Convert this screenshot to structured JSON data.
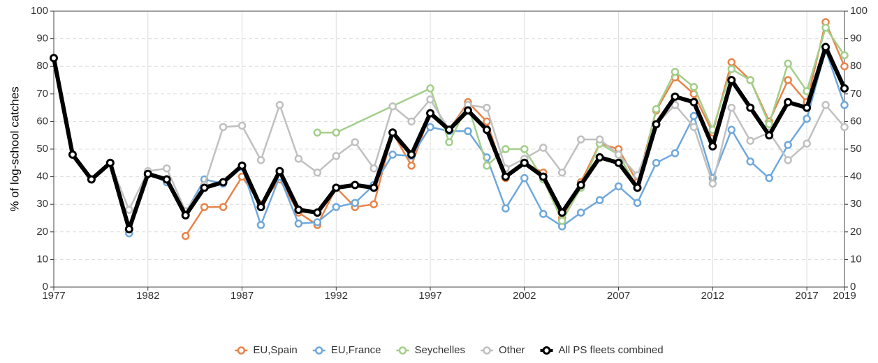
{
  "chart_data": {
    "type": "line",
    "ylabel": "% of log-school catches",
    "xlim": [
      1977,
      2019
    ],
    "xticks": [
      1977,
      1982,
      1987,
      1992,
      1997,
      2002,
      2007,
      2012,
      2017,
      2019
    ],
    "ylim": [
      0,
      100
    ],
    "yticks": [
      0,
      10,
      20,
      30,
      40,
      50,
      60,
      70,
      80,
      90,
      100
    ],
    "y2lim": [
      0,
      100
    ],
    "y2ticks": [
      0,
      10,
      20,
      30,
      40,
      50,
      60,
      70,
      80,
      90,
      100
    ],
    "grid": true,
    "legend": "bottom",
    "series": [
      {
        "name": "EU,Spain",
        "color": "#e8844a",
        "x": [
          1984,
          1985,
          1986,
          1987,
          1988,
          1989,
          1990,
          1991,
          1992,
          1993,
          1994,
          1995,
          1996,
          1997,
          1998,
          1999,
          2000,
          2001,
          2002,
          2003,
          2004,
          2005,
          2006,
          2007,
          2008,
          2009,
          2010,
          2011,
          2012,
          2013,
          2014,
          2015,
          2016,
          2017,
          2018,
          2019
        ],
        "values": [
          18.5,
          29,
          29,
          40,
          30,
          39,
          27,
          22.5,
          36,
          29,
          30,
          56,
          44,
          63,
          57,
          67,
          60,
          39.5,
          45,
          41.5,
          25,
          38,
          52,
          50,
          38,
          64,
          76,
          70,
          56,
          81.5,
          75,
          60,
          75,
          67,
          96,
          80
        ]
      },
      {
        "name": "EU,France",
        "color": "#6fa8dc",
        "x": [
          1981,
          1982,
          1983,
          1984,
          1985,
          1986,
          1987,
          1988,
          1989,
          1990,
          1991,
          1992,
          1993,
          1994,
          1995,
          1996,
          1997,
          1998,
          1999,
          2000,
          2001,
          2002,
          2003,
          2004,
          2005,
          2006,
          2007,
          2008,
          2009,
          2010,
          2011,
          2012,
          2013,
          2014,
          2015,
          2016,
          2017,
          2018,
          2019
        ],
        "values": [
          19.5,
          41,
          38,
          27,
          39,
          37.5,
          43.5,
          22.5,
          40,
          23,
          23.5,
          29,
          30.5,
          37,
          48,
          47.5,
          58,
          56.5,
          56.5,
          47,
          28.5,
          39.5,
          26.5,
          22,
          27,
          31.5,
          36.5,
          30.5,
          45,
          48.5,
          62,
          39.5,
          57,
          45.5,
          39.5,
          51.5,
          61,
          86,
          66
        ]
      },
      {
        "name": "Seychelles",
        "color": "#a3cf8a",
        "x": [
          1991,
          1992,
          1997,
          1998,
          1999,
          2000,
          2001,
          2002,
          2003,
          2004,
          2005,
          2006,
          2007,
          2008,
          2009,
          2010,
          2011,
          2012,
          2013,
          2014,
          2015,
          2016,
          2017,
          2018,
          2019
        ],
        "values": [
          56,
          56,
          72,
          52.5,
          66,
          44,
          50,
          50,
          39,
          24,
          36,
          52,
          48,
          36,
          64.5,
          78,
          72.5,
          57,
          79,
          75,
          59,
          81,
          71,
          94,
          84
        ]
      },
      {
        "name": "Other",
        "color": "#c0c0c0",
        "x": [
          1977,
          1978,
          1979,
          1980,
          1981,
          1982,
          1983,
          1984,
          1985,
          1986,
          1987,
          1988,
          1989,
          1990,
          1991,
          1992,
          1993,
          1994,
          1995,
          1996,
          1997,
          1998,
          1999,
          2000,
          2001,
          2002,
          2003,
          2004,
          2005,
          2006,
          2007,
          2008,
          2009,
          2010,
          2011,
          2012,
          2013,
          2014,
          2015,
          2016,
          2017,
          2018,
          2019
        ],
        "values": [
          83,
          48,
          39,
          45,
          28,
          42,
          43,
          27.5,
          37,
          58,
          58.5,
          46,
          66,
          46.5,
          41.5,
          47.5,
          52.5,
          43,
          65.5,
          60,
          68,
          57,
          66,
          65,
          43,
          46.5,
          50.5,
          41.5,
          53.5,
          53.5,
          48,
          40.5,
          59,
          66,
          58,
          37.5,
          65,
          53,
          56,
          46,
          52,
          66,
          58
        ]
      },
      {
        "name": "All PS fleets combined",
        "color": "#000000",
        "x": [
          1977,
          1978,
          1979,
          1980,
          1981,
          1982,
          1983,
          1984,
          1985,
          1986,
          1987,
          1988,
          1989,
          1990,
          1991,
          1992,
          1993,
          1994,
          1995,
          1996,
          1997,
          1998,
          1999,
          2000,
          2001,
          2002,
          2003,
          2004,
          2005,
          2006,
          2007,
          2008,
          2009,
          2010,
          2011,
          2012,
          2013,
          2014,
          2015,
          2016,
          2017,
          2018,
          2019
        ],
        "values": [
          83,
          48,
          39,
          45,
          21,
          41,
          39,
          26,
          36,
          38,
          44,
          29,
          42,
          28,
          27,
          36,
          37,
          36,
          56,
          48,
          63,
          57,
          64,
          57,
          40,
          45,
          40,
          27,
          37,
          47,
          45,
          36,
          59,
          69,
          67,
          51,
          75,
          65,
          55,
          67,
          65,
          87,
          72
        ]
      }
    ]
  }
}
